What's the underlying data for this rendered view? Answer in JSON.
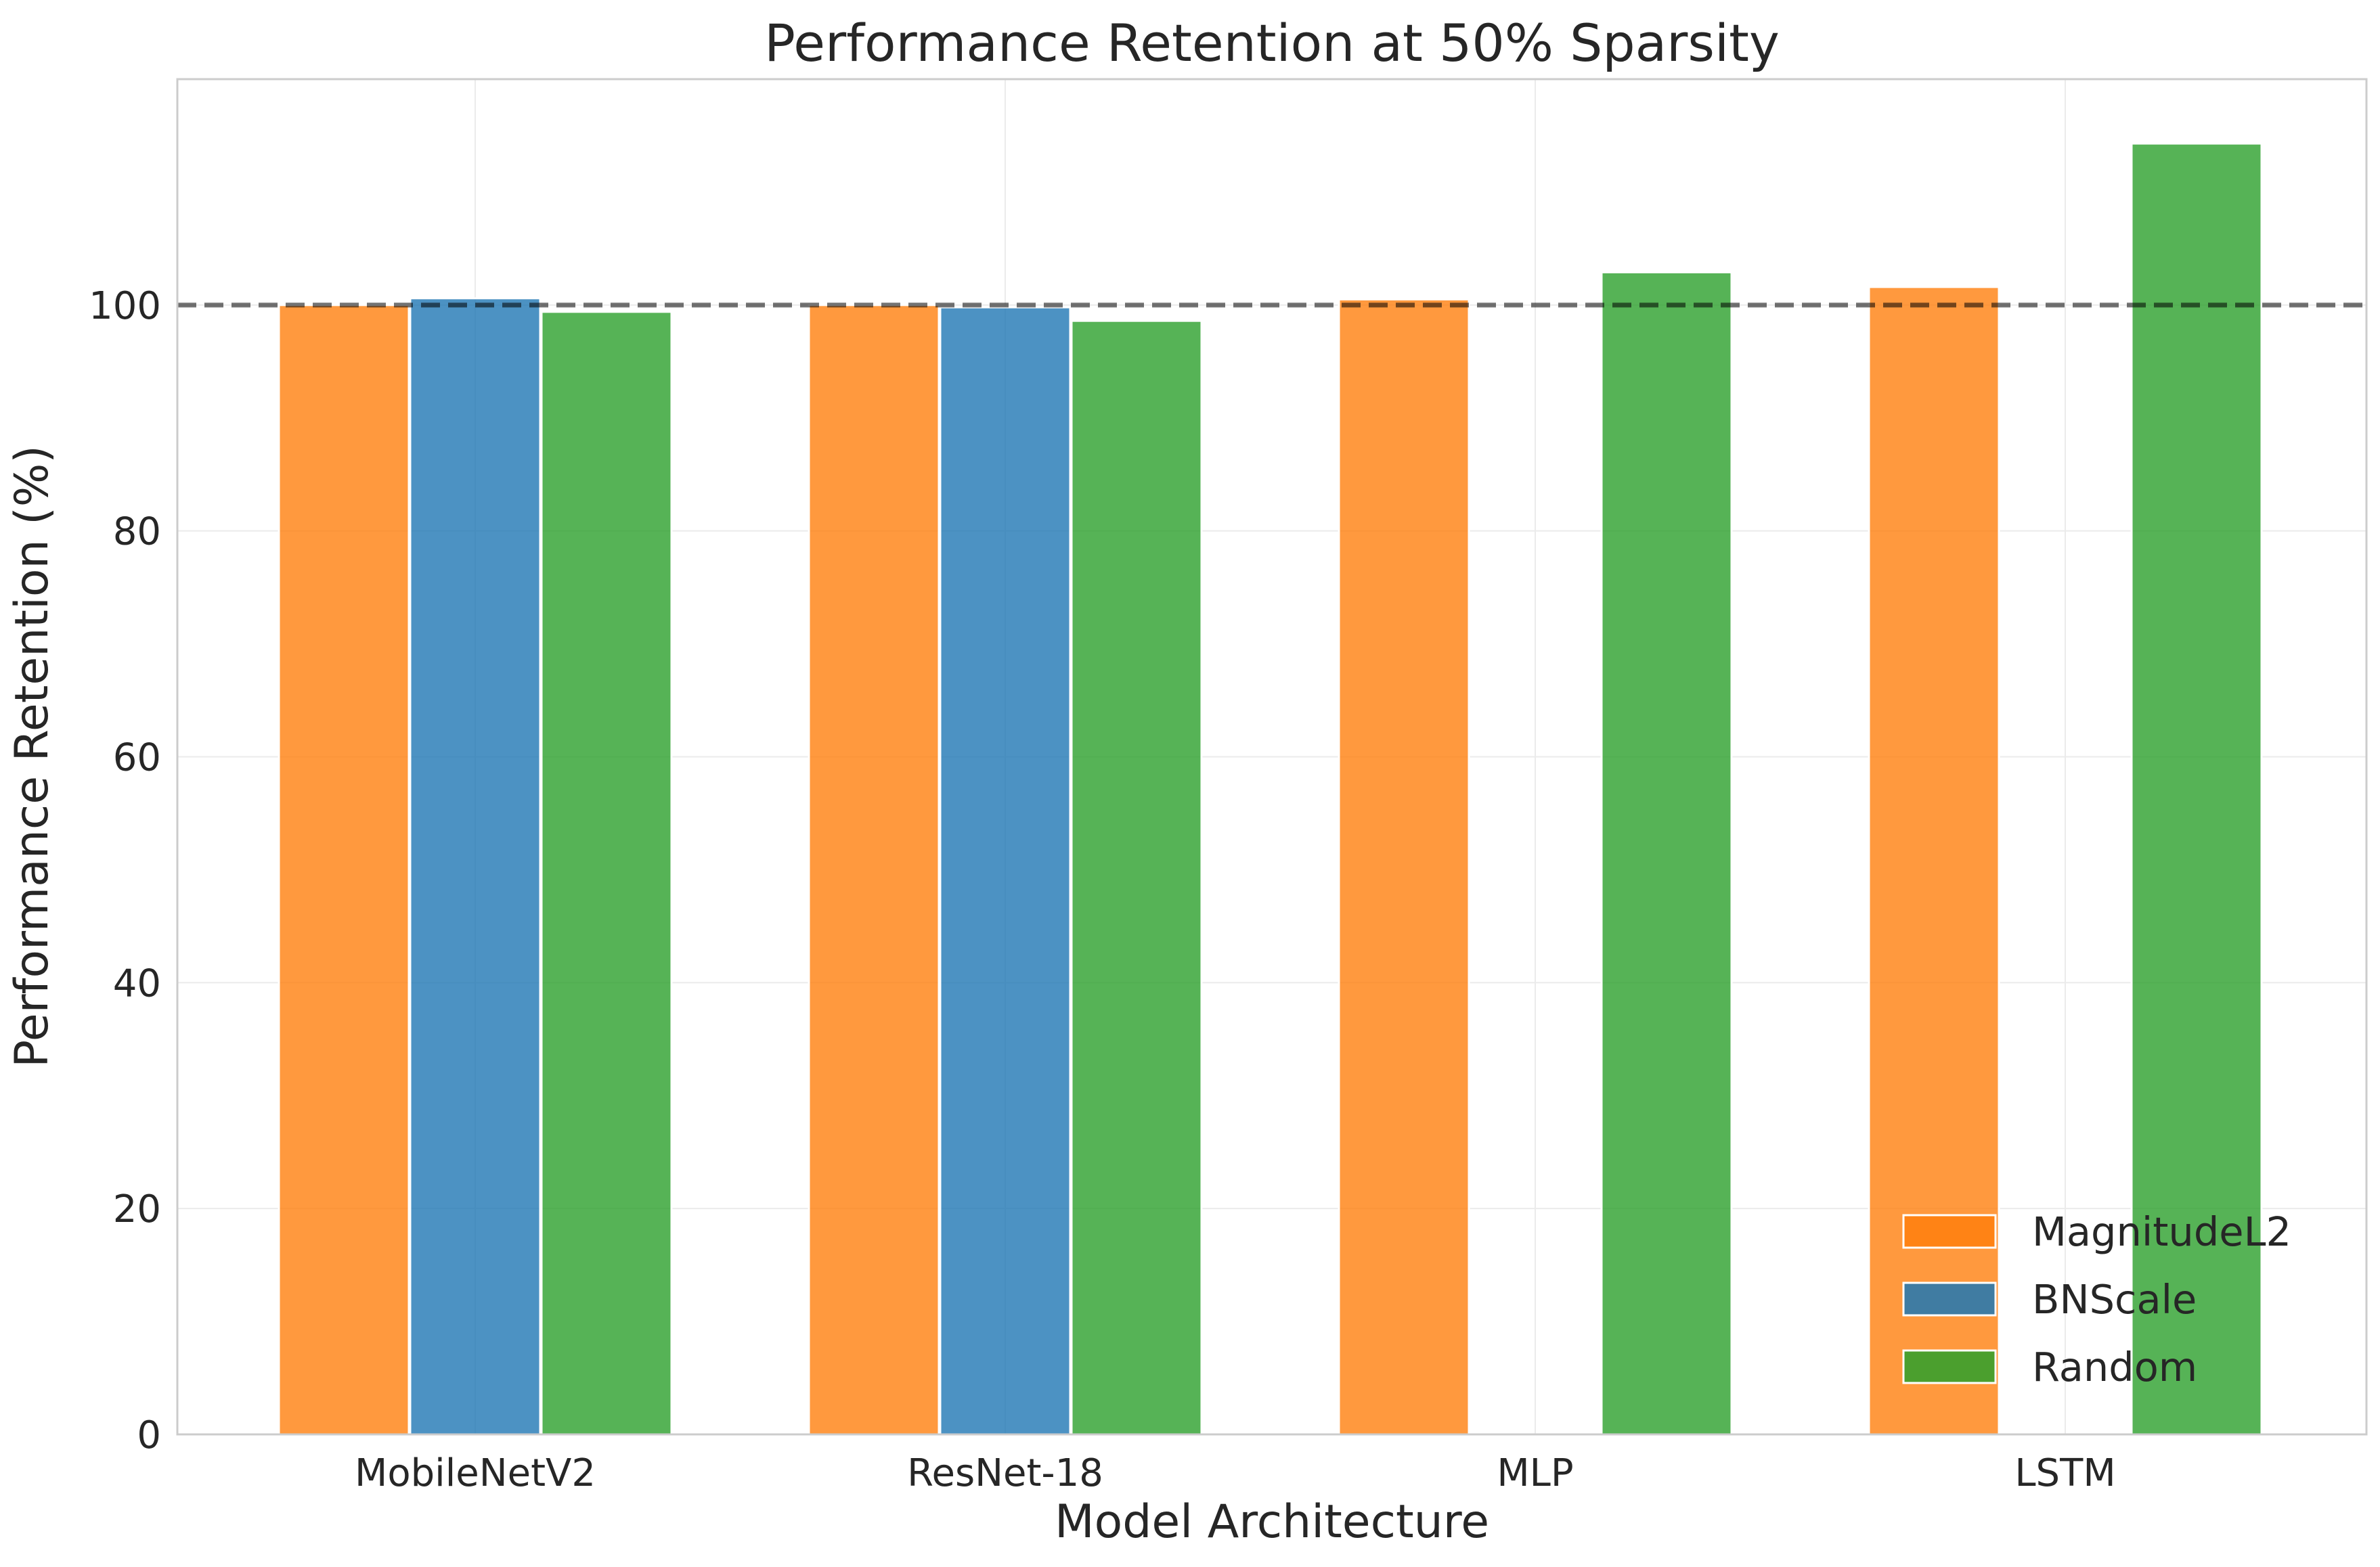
{
  "chart_data": {
    "type": "bar",
    "title": "Performance Retention at 50% Sparsity",
    "xlabel": "Model Architecture",
    "ylabel": "Performance Retention (%)",
    "categories": [
      "MobileNetV2",
      "ResNet-18",
      "MLP",
      "LSTM"
    ],
    "series": [
      {
        "name": "MagnitudeL2",
        "color": "#ff7f0e",
        "values": [
          100.0,
          100.0,
          100.5,
          101.6
        ]
      },
      {
        "name": "BNScale",
        "color": "#1f77b4",
        "values": [
          100.6,
          99.8,
          null,
          null
        ]
      },
      {
        "name": "Random",
        "color": "#2ca02c",
        "values": [
          99.4,
          98.6,
          102.9,
          114.3
        ]
      }
    ],
    "ylim": [
      0,
      120
    ],
    "yticks": [
      0,
      20,
      40,
      60,
      80,
      100
    ],
    "reference_line": {
      "value": 100,
      "style": "dashed",
      "color": "#555555"
    },
    "grid": true,
    "legend_position": "lower right"
  }
}
